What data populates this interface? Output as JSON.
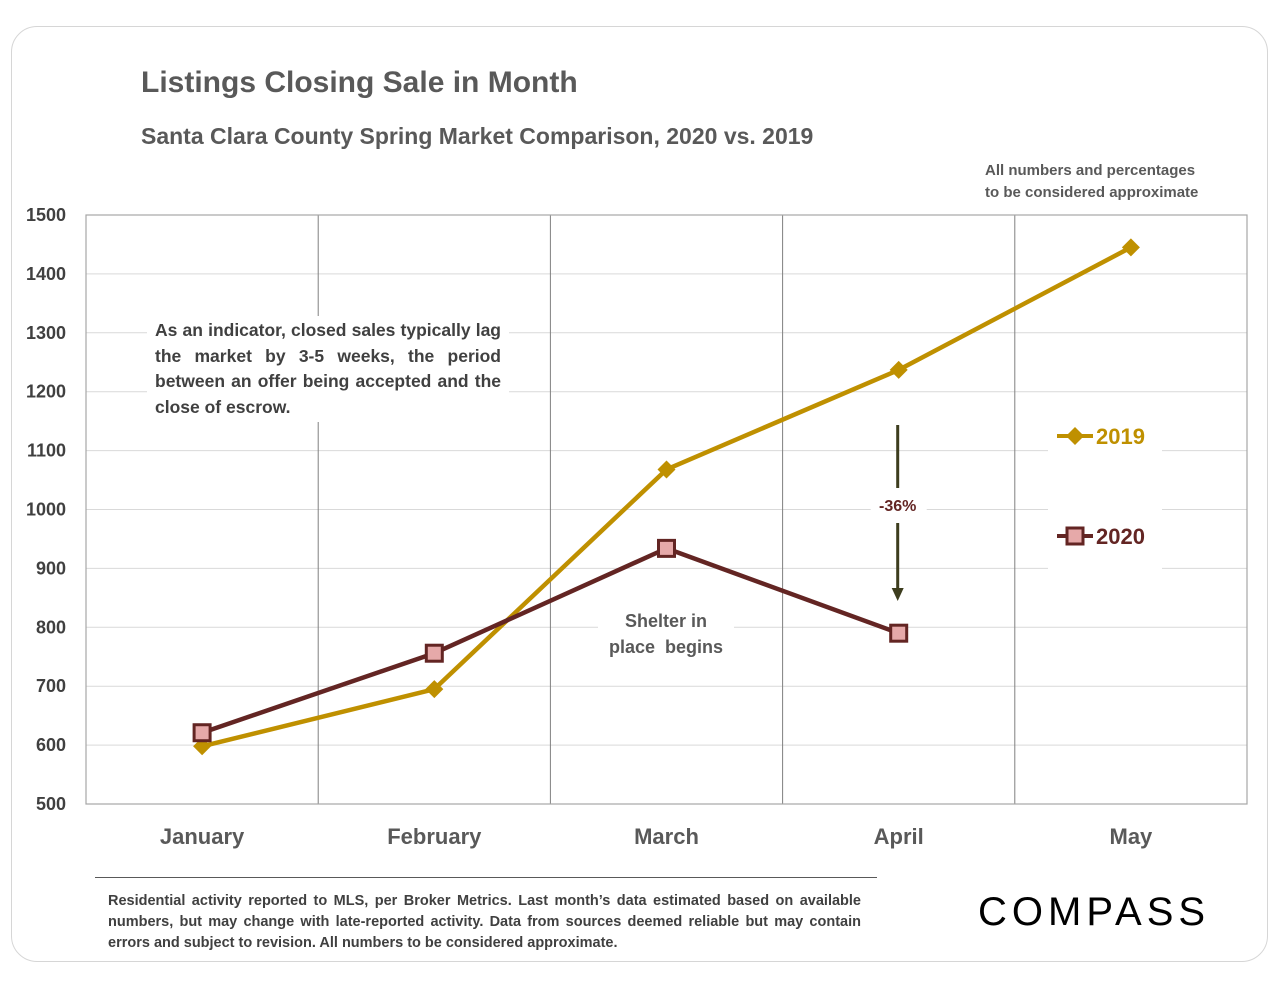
{
  "chart_data": {
    "type": "line",
    "title": "Listings Closing Sale in Month",
    "subtitle": "Santa Clara County Spring Market Comparison, 2020 vs. 2019",
    "categories": [
      "January",
      "February",
      "March",
      "April",
      "May"
    ],
    "ylim": [
      500,
      1500
    ],
    "yticks": [
      500,
      600,
      700,
      800,
      900,
      1000,
      1100,
      1200,
      1300,
      1400,
      1500
    ],
    "grid": true,
    "legend_position": "right",
    "series": [
      {
        "name": "2019",
        "color": "#bf9000",
        "marker": "diamond",
        "values": [
          598,
          695,
          1068,
          1237,
          1445
        ]
      },
      {
        "name": "2020",
        "color": "#632523",
        "marker": "square",
        "marker_fill": "#e6a9a9",
        "values": [
          621,
          756,
          934,
          790,
          null
        ]
      }
    ],
    "annotations": {
      "indicator_note": "As an indicator, closed sales typically lag the market by 3-5 weeks, the period between an offer being accepted and the close of escrow.",
      "shelter_line1": "Shelter in",
      "shelter_line2": "place  begins",
      "change_label": "-36%",
      "change_color": "#3d3d1e"
    }
  },
  "disclaimer": "All numbers and percentages",
  "disclaimer_line2": "to be considered approximate",
  "footnote": "Residential activity reported to MLS, per Broker Metrics. Last month’s data estimated based on available numbers, but may change with late-reported activity. Data from sources deemed reliable but may contain errors and subject to revision. All numbers to be considered approximate.",
  "brand": "COMPASS"
}
